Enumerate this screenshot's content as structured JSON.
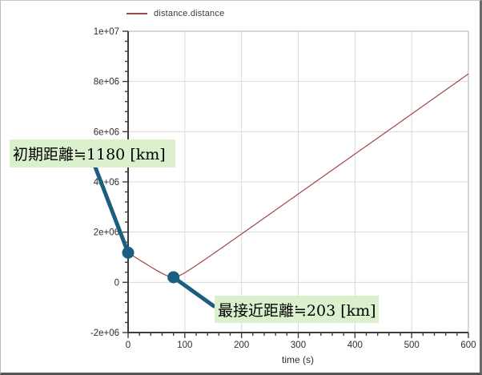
{
  "window": {
    "background": "#ffffff"
  },
  "chart": {
    "legend": {
      "label": "distance.distance",
      "line_color": "#a04848"
    },
    "x_axis": {
      "label": "time (s)",
      "ticks": [
        {
          "label": "0",
          "value": 0
        },
        {
          "label": "100",
          "value": 100
        },
        {
          "label": "200",
          "value": 200
        },
        {
          "label": "300",
          "value": 300
        },
        {
          "label": "400",
          "value": 400
        },
        {
          "label": "500",
          "value": 500
        },
        {
          "label": "600",
          "value": 600
        }
      ],
      "minor_step": 20
    },
    "y_axis": {
      "ticks": [
        {
          "label": "1e+07",
          "value": 10000000
        },
        {
          "label": "8e+06",
          "value": 8000000
        },
        {
          "label": "6e+06",
          "value": 6000000
        },
        {
          "label": "4e+06",
          "value": 4000000
        },
        {
          "label": "2e+06",
          "value": 2000000
        },
        {
          "label": "0",
          "value": 0
        },
        {
          "label": "-2e+06",
          "value": -2000000
        }
      ],
      "minor_step": 400000
    }
  },
  "chart_data": {
    "type": "line",
    "title": "",
    "xlabel": "time (s)",
    "ylabel": "",
    "xlim": [
      0,
      600
    ],
    "ylim": [
      -2000000,
      10000000
    ],
    "grid": true,
    "legend_position": "top-left",
    "series": [
      {
        "name": "distance.distance",
        "color": "#a04848",
        "x": [
          0,
          10,
          20,
          30,
          40,
          50,
          60,
          70,
          80,
          90,
          100,
          120,
          150,
          200,
          250,
          300,
          350,
          400,
          450,
          500,
          550,
          600
        ],
        "y": [
          1180000,
          1035000,
          893000,
          753000,
          614000,
          480000,
          354000,
          250000,
          203000,
          258000,
          378000,
          670000,
          1135000,
          1926000,
          2721000,
          3517000,
          4315000,
          5111000,
          5909000,
          6707000,
          7505000,
          8300000
        ]
      }
    ]
  },
  "annotations": [
    {
      "text": "初期距離≒1180 [km]",
      "point_time_s": 0,
      "point_value_m": 1180000
    },
    {
      "text": "最接近距離≒203 [km]",
      "point_time_s": 80,
      "point_value_m": 203000
    }
  ],
  "colors": {
    "curve": "#a04848",
    "callout": "#1b5f80",
    "annotation_bg": "#dbf0cd",
    "grid": "#d9d9d9",
    "frame": "#c9c9c9",
    "axis": "#3d3d3d",
    "tick_text": "#2e2e2e"
  }
}
